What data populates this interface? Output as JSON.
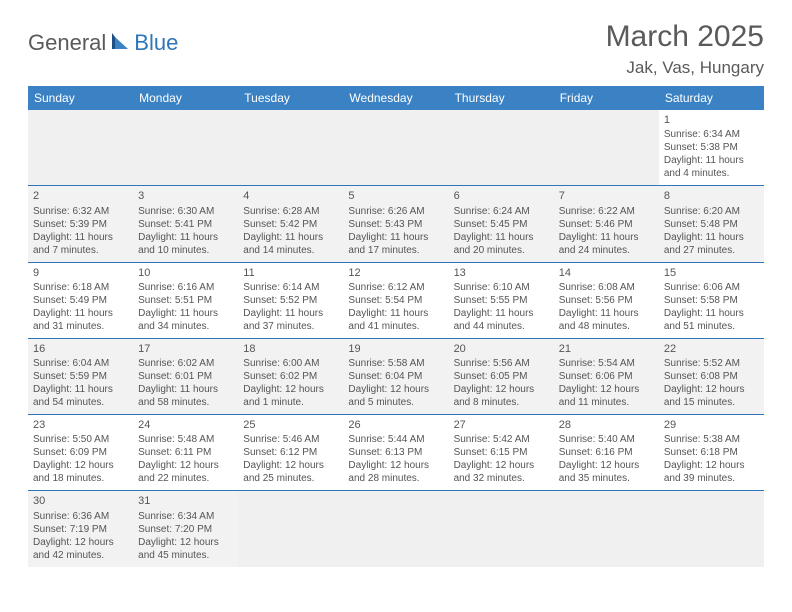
{
  "logo": {
    "part1": "General",
    "part2": "Blue"
  },
  "title": "March 2025",
  "location": "Jak, Vas, Hungary",
  "colors": {
    "header_bg": "#3b82c4",
    "header_fg": "#ffffff",
    "border": "#2f76b8",
    "text": "#555555",
    "shade": "#f2f2f2",
    "logo_blue": "#2f76b8"
  },
  "weekdays": [
    "Sunday",
    "Monday",
    "Tuesday",
    "Wednesday",
    "Thursday",
    "Friday",
    "Saturday"
  ],
  "weeks": [
    [
      null,
      null,
      null,
      null,
      null,
      null,
      {
        "n": "1",
        "sr": "Sunrise: 6:34 AM",
        "ss": "Sunset: 5:38 PM",
        "dl": "Daylight: 11 hours and 4 minutes."
      }
    ],
    [
      {
        "n": "2",
        "sr": "Sunrise: 6:32 AM",
        "ss": "Sunset: 5:39 PM",
        "dl": "Daylight: 11 hours and 7 minutes."
      },
      {
        "n": "3",
        "sr": "Sunrise: 6:30 AM",
        "ss": "Sunset: 5:41 PM",
        "dl": "Daylight: 11 hours and 10 minutes."
      },
      {
        "n": "4",
        "sr": "Sunrise: 6:28 AM",
        "ss": "Sunset: 5:42 PM",
        "dl": "Daylight: 11 hours and 14 minutes."
      },
      {
        "n": "5",
        "sr": "Sunrise: 6:26 AM",
        "ss": "Sunset: 5:43 PM",
        "dl": "Daylight: 11 hours and 17 minutes."
      },
      {
        "n": "6",
        "sr": "Sunrise: 6:24 AM",
        "ss": "Sunset: 5:45 PM",
        "dl": "Daylight: 11 hours and 20 minutes."
      },
      {
        "n": "7",
        "sr": "Sunrise: 6:22 AM",
        "ss": "Sunset: 5:46 PM",
        "dl": "Daylight: 11 hours and 24 minutes."
      },
      {
        "n": "8",
        "sr": "Sunrise: 6:20 AM",
        "ss": "Sunset: 5:48 PM",
        "dl": "Daylight: 11 hours and 27 minutes."
      }
    ],
    [
      {
        "n": "9",
        "sr": "Sunrise: 6:18 AM",
        "ss": "Sunset: 5:49 PM",
        "dl": "Daylight: 11 hours and 31 minutes."
      },
      {
        "n": "10",
        "sr": "Sunrise: 6:16 AM",
        "ss": "Sunset: 5:51 PM",
        "dl": "Daylight: 11 hours and 34 minutes."
      },
      {
        "n": "11",
        "sr": "Sunrise: 6:14 AM",
        "ss": "Sunset: 5:52 PM",
        "dl": "Daylight: 11 hours and 37 minutes."
      },
      {
        "n": "12",
        "sr": "Sunrise: 6:12 AM",
        "ss": "Sunset: 5:54 PM",
        "dl": "Daylight: 11 hours and 41 minutes."
      },
      {
        "n": "13",
        "sr": "Sunrise: 6:10 AM",
        "ss": "Sunset: 5:55 PM",
        "dl": "Daylight: 11 hours and 44 minutes."
      },
      {
        "n": "14",
        "sr": "Sunrise: 6:08 AM",
        "ss": "Sunset: 5:56 PM",
        "dl": "Daylight: 11 hours and 48 minutes."
      },
      {
        "n": "15",
        "sr": "Sunrise: 6:06 AM",
        "ss": "Sunset: 5:58 PM",
        "dl": "Daylight: 11 hours and 51 minutes."
      }
    ],
    [
      {
        "n": "16",
        "sr": "Sunrise: 6:04 AM",
        "ss": "Sunset: 5:59 PM",
        "dl": "Daylight: 11 hours and 54 minutes."
      },
      {
        "n": "17",
        "sr": "Sunrise: 6:02 AM",
        "ss": "Sunset: 6:01 PM",
        "dl": "Daylight: 11 hours and 58 minutes."
      },
      {
        "n": "18",
        "sr": "Sunrise: 6:00 AM",
        "ss": "Sunset: 6:02 PM",
        "dl": "Daylight: 12 hours and 1 minute."
      },
      {
        "n": "19",
        "sr": "Sunrise: 5:58 AM",
        "ss": "Sunset: 6:04 PM",
        "dl": "Daylight: 12 hours and 5 minutes."
      },
      {
        "n": "20",
        "sr": "Sunrise: 5:56 AM",
        "ss": "Sunset: 6:05 PM",
        "dl": "Daylight: 12 hours and 8 minutes."
      },
      {
        "n": "21",
        "sr": "Sunrise: 5:54 AM",
        "ss": "Sunset: 6:06 PM",
        "dl": "Daylight: 12 hours and 11 minutes."
      },
      {
        "n": "22",
        "sr": "Sunrise: 5:52 AM",
        "ss": "Sunset: 6:08 PM",
        "dl": "Daylight: 12 hours and 15 minutes."
      }
    ],
    [
      {
        "n": "23",
        "sr": "Sunrise: 5:50 AM",
        "ss": "Sunset: 6:09 PM",
        "dl": "Daylight: 12 hours and 18 minutes."
      },
      {
        "n": "24",
        "sr": "Sunrise: 5:48 AM",
        "ss": "Sunset: 6:11 PM",
        "dl": "Daylight: 12 hours and 22 minutes."
      },
      {
        "n": "25",
        "sr": "Sunrise: 5:46 AM",
        "ss": "Sunset: 6:12 PM",
        "dl": "Daylight: 12 hours and 25 minutes."
      },
      {
        "n": "26",
        "sr": "Sunrise: 5:44 AM",
        "ss": "Sunset: 6:13 PM",
        "dl": "Daylight: 12 hours and 28 minutes."
      },
      {
        "n": "27",
        "sr": "Sunrise: 5:42 AM",
        "ss": "Sunset: 6:15 PM",
        "dl": "Daylight: 12 hours and 32 minutes."
      },
      {
        "n": "28",
        "sr": "Sunrise: 5:40 AM",
        "ss": "Sunset: 6:16 PM",
        "dl": "Daylight: 12 hours and 35 minutes."
      },
      {
        "n": "29",
        "sr": "Sunrise: 5:38 AM",
        "ss": "Sunset: 6:18 PM",
        "dl": "Daylight: 12 hours and 39 minutes."
      }
    ],
    [
      {
        "n": "30",
        "sr": "Sunrise: 6:36 AM",
        "ss": "Sunset: 7:19 PM",
        "dl": "Daylight: 12 hours and 42 minutes."
      },
      {
        "n": "31",
        "sr": "Sunrise: 6:34 AM",
        "ss": "Sunset: 7:20 PM",
        "dl": "Daylight: 12 hours and 45 minutes."
      },
      null,
      null,
      null,
      null,
      null
    ]
  ]
}
